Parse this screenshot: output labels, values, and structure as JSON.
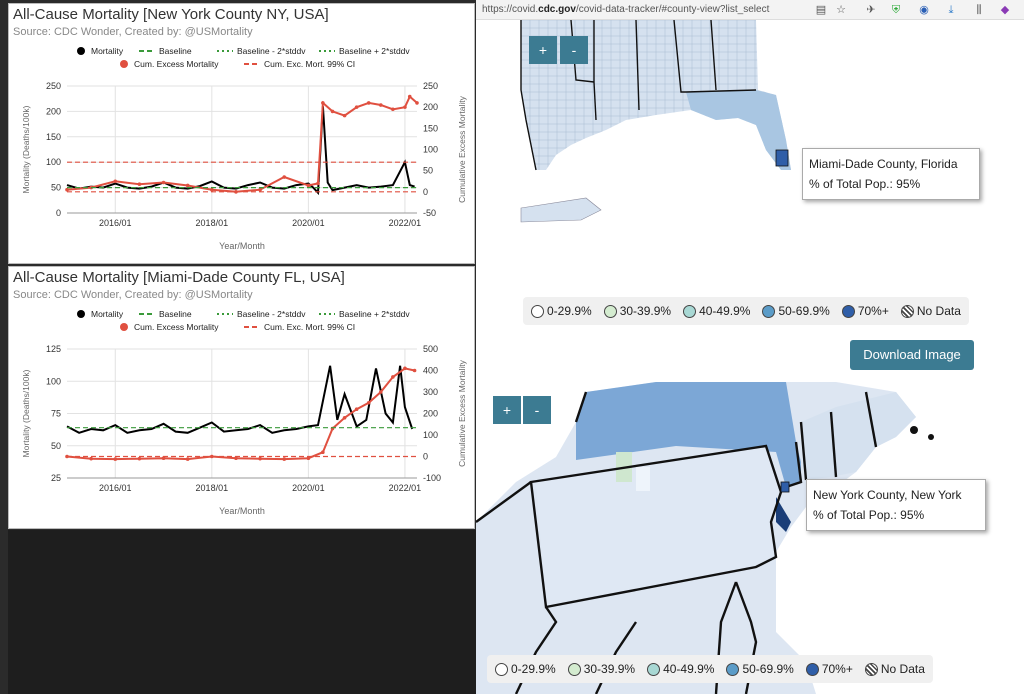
{
  "charts": [
    {
      "title": "All-Cause Mortality [New York County NY, USA]",
      "source": "Source: CDC Wonder, Created by: @USMortality"
    },
    {
      "title": "All-Cause Mortality [Miami-Dade County FL, USA]",
      "source": "Source: CDC Wonder, Created by: @USMortality"
    }
  ],
  "chart_data": [
    {
      "type": "line",
      "title": "All-Cause Mortality [New York County NY, USA]",
      "subtitle": "Source: CDC Wonder, Created by: @USMortality",
      "xlabel": "Year/Month",
      "ylabel": "Mortality (Deaths/100k)",
      "y2label": "Cumulative Excess Mortality",
      "x_ticks": [
        "2016/01",
        "2018/01",
        "2020/01",
        "2022/01"
      ],
      "x_tick_pos": [
        2016.0,
        2018.0,
        2020.0,
        2022.0
      ],
      "xlim": [
        2015.0,
        2022.25
      ],
      "ylim": [
        0,
        250
      ],
      "y_ticks": [
        0,
        50,
        100,
        150,
        200,
        250
      ],
      "y2lim": [
        -50,
        250
      ],
      "y2_ticks": [
        -50,
        0,
        50,
        100,
        150,
        200,
        250
      ],
      "legend": [
        "Mortality",
        "Baseline",
        "Baseline - 2*stddv",
        "Baseline + 2*stddv",
        "Cum. Excess Mortality",
        "Cum. Exc. Mort. 99% CI"
      ],
      "legend_position": "top",
      "grid": true,
      "series": [
        {
          "name": "Mortality",
          "color": "#000000",
          "axis": "left",
          "x": [
            2015.0,
            2015.25,
            2015.5,
            2015.75,
            2016.0,
            2016.25,
            2016.5,
            2016.75,
            2017.0,
            2017.25,
            2017.5,
            2017.75,
            2018.0,
            2018.25,
            2018.5,
            2018.75,
            2019.0,
            2019.25,
            2019.5,
            2019.75,
            2020.0,
            2020.1,
            2020.2,
            2020.3,
            2020.4,
            2020.5,
            2020.75,
            2021.0,
            2021.25,
            2021.5,
            2021.75,
            2022.0,
            2022.1,
            2022.2
          ],
          "y": [
            55,
            48,
            52,
            50,
            58,
            50,
            48,
            52,
            60,
            50,
            48,
            53,
            62,
            50,
            48,
            55,
            60,
            50,
            48,
            55,
            58,
            50,
            40,
            210,
            60,
            45,
            50,
            55,
            50,
            52,
            55,
            100,
            55,
            52
          ]
        },
        {
          "name": "Cum. Excess Mortality",
          "color": "#e05040",
          "axis": "right",
          "x": [
            2015.0,
            2015.5,
            2016.0,
            2016.5,
            2017.0,
            2017.5,
            2018.0,
            2018.5,
            2019.0,
            2019.5,
            2020.0,
            2020.2,
            2020.3,
            2020.5,
            2020.75,
            2021.0,
            2021.25,
            2021.5,
            2021.75,
            2022.0,
            2022.1,
            2022.25
          ],
          "y": [
            5,
            10,
            25,
            18,
            22,
            15,
            5,
            0,
            5,
            35,
            15,
            20,
            210,
            190,
            180,
            200,
            210,
            205,
            195,
            200,
            225,
            210
          ]
        },
        {
          "name": "Cum. Exc. Mort. 99% CI",
          "color": "#e05040",
          "axis": "right",
          "dash": true,
          "x": [
            2015.0,
            2022.25
          ],
          "y": [
            0,
            0
          ]
        },
        {
          "name": "Cum. Exc. Mort. 99% CI",
          "color": "#e05040",
          "axis": "left",
          "dash": true,
          "x": [
            2015.0,
            2022.25
          ],
          "y": [
            100,
            100
          ]
        },
        {
          "name": "Baseline",
          "color": "#3a9a3a",
          "axis": "left",
          "dash": true,
          "x": [
            2015.0,
            2022.25
          ],
          "y": [
            50,
            50
          ]
        }
      ]
    },
    {
      "type": "line",
      "title": "All-Cause Mortality [Miami-Dade County FL, USA]",
      "subtitle": "Source: CDC Wonder, Created by: @USMortality",
      "xlabel": "Year/Month",
      "ylabel": "Mortality (Deaths/100k)",
      "y2label": "Cumulative Excess Mortality",
      "x_ticks": [
        "2016/01",
        "2018/01",
        "2020/01",
        "2022/01"
      ],
      "x_tick_pos": [
        2016.0,
        2018.0,
        2020.0,
        2022.0
      ],
      "xlim": [
        2015.0,
        2022.25
      ],
      "ylim": [
        25,
        125
      ],
      "y_ticks": [
        25,
        50,
        75,
        100,
        125
      ],
      "y2lim": [
        -100,
        500
      ],
      "y2_ticks": [
        -100,
        0,
        100,
        200,
        300,
        400,
        500
      ],
      "legend": [
        "Mortality",
        "Baseline",
        "Baseline - 2*stddv",
        "Baseline + 2*stddv",
        "Cum. Excess Mortality",
        "Cum. Exc. Mort. 99% CI"
      ],
      "legend_position": "top",
      "grid": true,
      "series": [
        {
          "name": "Mortality",
          "color": "#000000",
          "axis": "left",
          "x": [
            2015.0,
            2015.25,
            2015.5,
            2015.75,
            2016.0,
            2016.25,
            2016.5,
            2016.75,
            2017.0,
            2017.25,
            2017.5,
            2017.75,
            2018.0,
            2018.25,
            2018.5,
            2018.75,
            2019.0,
            2019.25,
            2019.5,
            2019.75,
            2020.0,
            2020.2,
            2020.45,
            2020.6,
            2020.75,
            2021.0,
            2021.2,
            2021.4,
            2021.6,
            2021.75,
            2021.9,
            2022.0,
            2022.15
          ],
          "y": [
            65,
            60,
            63,
            62,
            66,
            60,
            62,
            63,
            67,
            61,
            60,
            64,
            68,
            61,
            62,
            63,
            66,
            60,
            62,
            63,
            65,
            66,
            112,
            70,
            90,
            65,
            70,
            110,
            75,
            68,
            112,
            80,
            63
          ]
        },
        {
          "name": "Cum. Excess Mortality",
          "color": "#e05040",
          "axis": "right",
          "x": [
            2015.0,
            2015.5,
            2016.0,
            2016.5,
            2017.0,
            2017.5,
            2018.0,
            2018.5,
            2019.0,
            2019.5,
            2020.0,
            2020.3,
            2020.5,
            2020.75,
            2021.0,
            2021.25,
            2021.5,
            2021.75,
            2022.0,
            2022.2
          ],
          "y": [
            0,
            -10,
            -12,
            -10,
            -8,
            -12,
            0,
            -8,
            -10,
            -12,
            -8,
            20,
            130,
            180,
            220,
            250,
            300,
            370,
            410,
            400
          ]
        },
        {
          "name": "Cum. Exc. Mort. 99% CI",
          "color": "#e05040",
          "axis": "right",
          "dash": true,
          "x": [
            2015.0,
            2022.25
          ],
          "y": [
            0,
            0
          ]
        },
        {
          "name": "Baseline",
          "color": "#3a9a3a",
          "axis": "left",
          "dash": true,
          "x": [
            2015.0,
            2022.25
          ],
          "y": [
            64,
            64
          ]
        }
      ]
    }
  ],
  "browser": {
    "url_prefix": "https://covid.",
    "url_domain": "cdc.gov",
    "url_suffix": "/covid-data-tracker/#county-view?list_select"
  },
  "icons": [
    "reader-icon",
    "bookmark-star-icon",
    "extension-icon",
    "shield-icon",
    "onepassword-icon",
    "download-icon",
    "library-icon",
    "extension-cube-icon"
  ],
  "map1": {
    "zoom_in": "+",
    "zoom_out": "-",
    "tooltip_name": "Miami-Dade County, Florida",
    "tooltip_value": "% of Total Pop.: 95%"
  },
  "map2": {
    "zoom_in": "+",
    "zoom_out": "-",
    "tooltip_name": "New York County, New York",
    "tooltip_value": "% of Total Pop.: 95%"
  },
  "legend": {
    "items": [
      {
        "label": "0-29.9%",
        "color": "#ffffff"
      },
      {
        "label": "30-39.9%",
        "color": "#d4ecd0"
      },
      {
        "label": "40-49.9%",
        "color": "#a8d8d4"
      },
      {
        "label": "50-69.9%",
        "color": "#5b9cc8"
      },
      {
        "label": "70%+",
        "color": "#2f5ea8"
      },
      {
        "label": "No Data",
        "color": "nodata"
      }
    ]
  },
  "download_label": "Download Image"
}
